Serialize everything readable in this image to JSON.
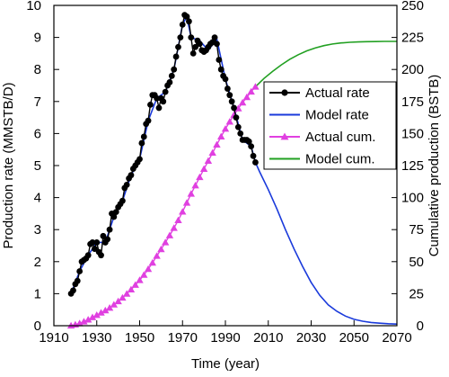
{
  "chart_data": {
    "type": "line",
    "xlabel": "Time (year)",
    "ylabel": "Production rate (MMSTB/D)",
    "ylabel_right": "Cumulative production (BSTB)",
    "xlim": [
      1910,
      2070
    ],
    "ylim": [
      0,
      10
    ],
    "ylim_right": [
      0,
      250
    ],
    "x_ticks": [
      1910,
      1930,
      1950,
      1970,
      1990,
      2010,
      2030,
      2050,
      2070
    ],
    "y_ticks": [
      0,
      1,
      2,
      3,
      4,
      5,
      6,
      7,
      8,
      9,
      10
    ],
    "y_ticks_right": [
      0,
      25,
      50,
      75,
      100,
      125,
      150,
      175,
      200,
      225,
      250
    ],
    "grid": false,
    "legend_position": "top-right",
    "colors": {
      "actual_rate": "#000000",
      "model_rate": "#1a3adb",
      "actual_cum": "#e040e0",
      "model_cum": "#22a022"
    },
    "series": [
      {
        "name": "Actual rate",
        "axis": "left",
        "marker": "circle",
        "x": [
          1918,
          1919,
          1920,
          1921,
          1922,
          1923,
          1924,
          1925,
          1926,
          1927,
          1928,
          1929,
          1930,
          1931,
          1932,
          1933,
          1934,
          1935,
          1936,
          1937,
          1938,
          1939,
          1940,
          1941,
          1942,
          1943,
          1944,
          1945,
          1946,
          1947,
          1948,
          1949,
          1950,
          1951,
          1952,
          1953,
          1954,
          1955,
          1956,
          1957,
          1958,
          1959,
          1960,
          1961,
          1962,
          1963,
          1964,
          1965,
          1966,
          1967,
          1968,
          1969,
          1970,
          1971,
          1972,
          1973,
          1974,
          1975,
          1976,
          1977,
          1978,
          1979,
          1980,
          1981,
          1982,
          1983,
          1984,
          1985,
          1986,
          1987,
          1988,
          1989,
          1990,
          1991,
          1992,
          1993,
          1994,
          1995,
          1996,
          1997,
          1998,
          1999,
          2000,
          2001,
          2002,
          2003,
          2004
        ],
        "y": [
          1.0,
          1.1,
          1.3,
          1.4,
          1.7,
          2.0,
          2.05,
          2.1,
          2.2,
          2.55,
          2.6,
          2.4,
          2.6,
          2.3,
          2.2,
          2.8,
          2.6,
          2.7,
          3.0,
          3.5,
          3.4,
          3.55,
          3.7,
          3.8,
          3.9,
          4.3,
          4.4,
          4.6,
          4.7,
          4.9,
          5.0,
          5.1,
          5.2,
          5.7,
          5.9,
          6.3,
          6.4,
          6.9,
          7.2,
          7.2,
          7.1,
          6.8,
          7.1,
          7.0,
          7.3,
          7.5,
          7.6,
          7.8,
          8.0,
          8.4,
          8.7,
          9.0,
          9.4,
          9.7,
          9.65,
          9.5,
          9.0,
          8.5,
          8.7,
          8.9,
          8.8,
          8.6,
          8.55,
          8.6,
          8.7,
          8.8,
          8.85,
          9.0,
          8.8,
          8.3,
          8.0,
          7.8,
          7.7,
          7.4,
          7.2,
          7.0,
          6.8,
          6.5,
          6.2,
          6.0,
          5.8,
          5.8,
          5.8,
          5.75,
          5.6,
          5.3,
          5.1
        ]
      },
      {
        "name": "Model rate",
        "axis": "left",
        "marker": "none",
        "x": [
          1918,
          1922,
          1926,
          1930,
          1934,
          1938,
          1942,
          1946,
          1950,
          1954,
          1958,
          1962,
          1966,
          1970,
          1972,
          1974,
          1978,
          1982,
          1986,
          1990,
          1994,
          1998,
          2002,
          2004,
          2006,
          2010,
          2014,
          2018,
          2022,
          2026,
          2030,
          2034,
          2038,
          2042,
          2046,
          2050,
          2054,
          2058,
          2062,
          2066,
          2070
        ],
        "y": [
          1.0,
          1.7,
          2.2,
          2.6,
          2.6,
          3.4,
          3.9,
          4.7,
          5.2,
          6.4,
          7.1,
          7.3,
          8.0,
          9.4,
          9.65,
          9.0,
          8.9,
          8.6,
          8.95,
          7.7,
          6.8,
          5.8,
          5.6,
          5.1,
          4.8,
          4.25,
          3.65,
          3.0,
          2.4,
          1.85,
          1.35,
          0.95,
          0.65,
          0.45,
          0.3,
          0.2,
          0.14,
          0.1,
          0.08,
          0.06,
          0.05
        ]
      },
      {
        "name": "Actual cum.",
        "axis": "right",
        "marker": "triangle",
        "x": [
          1918,
          1920,
          1922,
          1924,
          1926,
          1928,
          1930,
          1932,
          1934,
          1936,
          1938,
          1940,
          1942,
          1944,
          1946,
          1948,
          1950,
          1952,
          1954,
          1956,
          1958,
          1960,
          1962,
          1964,
          1966,
          1968,
          1970,
          1972,
          1974,
          1976,
          1978,
          1980,
          1982,
          1984,
          1986,
          1988,
          1990,
          1992,
          1994,
          1996,
          1998,
          2000,
          2002,
          2004
        ],
        "y": [
          0,
          0.8,
          1.8,
          3.2,
          4.7,
          6.5,
          8.3,
          10.1,
          11.9,
          13.9,
          16.4,
          19.0,
          21.8,
          24.9,
          28.2,
          31.8,
          35.5,
          39.6,
          44.2,
          49.1,
          54.4,
          59.6,
          65.0,
          70.4,
          76.2,
          82.3,
          88.9,
          95.9,
          102.9,
          109.4,
          115.9,
          122.3,
          128.6,
          134.9,
          141.3,
          147.6,
          153.6,
          159.2,
          164.5,
          169.5,
          174.1,
          178.3,
          182.6,
          186.5
        ]
      },
      {
        "name": "Model cum.",
        "axis": "right",
        "marker": "none",
        "x": [
          2004,
          2008,
          2012,
          2016,
          2020,
          2024,
          2028,
          2032,
          2036,
          2040,
          2044,
          2048,
          2052,
          2056,
          2060,
          2064,
          2068,
          2070
        ],
        "y": [
          186.5,
          193.0,
          198.5,
          203.5,
          207.9,
          211.5,
          214.5,
          216.8,
          218.6,
          219.9,
          220.7,
          221.2,
          221.5,
          221.7,
          221.8,
          221.9,
          221.9,
          221.9
        ]
      }
    ]
  }
}
